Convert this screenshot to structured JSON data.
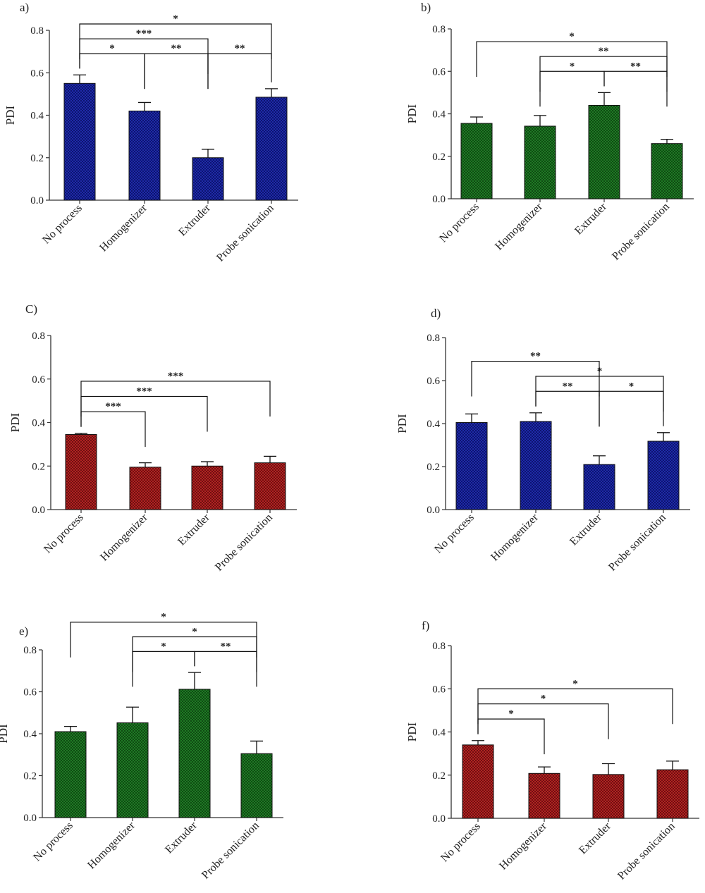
{
  "figure": {
    "colors": {
      "blue": "#1f2aa8",
      "green": "#1c6b22",
      "red": "#a01c1c",
      "axis": "#333333"
    },
    "chart_data": [
      {
        "panel": "a)",
        "type": "bar",
        "color": "blue",
        "ylabel": "PDI",
        "ylim": [
          0,
          0.8
        ],
        "yticks": [
          "0.0",
          "0.2",
          "0.4",
          "0.6",
          "0.8"
        ],
        "categories": [
          "No process",
          "Homogenizer",
          "Extruder",
          "Probe sonication"
        ],
        "values": [
          0.55,
          0.42,
          0.2,
          0.485
        ],
        "errors": [
          0.04,
          0.04,
          0.04,
          0.04
        ],
        "significance": [
          {
            "from": 0,
            "to": 1,
            "label": "*"
          },
          {
            "from": 0,
            "to": 2,
            "label": "***"
          },
          {
            "from": 1,
            "to": 2,
            "label": "**"
          },
          {
            "from": 2,
            "to": 3,
            "label": "**"
          },
          {
            "from": 0,
            "to": 3,
            "label": "*"
          }
        ]
      },
      {
        "panel": "b)",
        "type": "bar",
        "color": "green",
        "ylabel": "PDI",
        "ylim": [
          0,
          0.8
        ],
        "yticks": [
          "0.0",
          "0.2",
          "0.4",
          "0.6",
          "0.8"
        ],
        "categories": [
          "No process",
          "Homogenizer",
          "Extruder",
          "Probe sonication"
        ],
        "values": [
          0.355,
          0.342,
          0.44,
          0.26
        ],
        "errors": [
          0.03,
          0.05,
          0.06,
          0.02
        ],
        "significance": [
          {
            "from": 1,
            "to": 2,
            "label": "*"
          },
          {
            "from": 2,
            "to": 3,
            "label": "**"
          },
          {
            "from": 1,
            "to": 3,
            "label": "**"
          },
          {
            "from": 0,
            "to": 3,
            "label": "*"
          }
        ]
      },
      {
        "panel": "C)",
        "type": "bar",
        "color": "red",
        "ylabel": "PDI",
        "ylim": [
          0,
          0.8
        ],
        "yticks": [
          "0.0",
          "0.2",
          "0.4",
          "0.6",
          "0.8"
        ],
        "categories": [
          "No process",
          "Homogenizer",
          "Extruder",
          "Probe sonication"
        ],
        "values": [
          0.345,
          0.195,
          0.2,
          0.215
        ],
        "errors": [
          0.005,
          0.02,
          0.02,
          0.03
        ],
        "significance": [
          {
            "from": 0,
            "to": 1,
            "label": "***"
          },
          {
            "from": 0,
            "to": 2,
            "label": "***"
          },
          {
            "from": 0,
            "to": 3,
            "label": "***"
          }
        ]
      },
      {
        "panel": "d)",
        "type": "bar",
        "color": "blue",
        "ylabel": "PDI",
        "ylim": [
          0,
          0.8
        ],
        "yticks": [
          "0.0",
          "0.2",
          "0.4",
          "0.6",
          "0.8"
        ],
        "categories": [
          "No process",
          "Homogenizer",
          "Extruder",
          "Probe sonication"
        ],
        "values": [
          0.405,
          0.41,
          0.21,
          0.318
        ],
        "errors": [
          0.04,
          0.04,
          0.04,
          0.04
        ],
        "significance": [
          {
            "from": 1,
            "to": 2,
            "label": "**"
          },
          {
            "from": 2,
            "to": 3,
            "label": "*"
          },
          {
            "from": 1,
            "to": 3,
            "label": "*"
          },
          {
            "from": 0,
            "to": 2,
            "label": "**"
          }
        ]
      },
      {
        "panel": "e)",
        "type": "bar",
        "color": "green",
        "ylabel": "PDI",
        "ylim": [
          0,
          0.8
        ],
        "yticks": [
          "0.0",
          "0.2",
          "0.4",
          "0.6",
          "0.8"
        ],
        "categories": [
          "No process",
          "Homogenizer",
          "Extruder",
          "Probe sonication"
        ],
        "values": [
          0.41,
          0.452,
          0.612,
          0.305
        ],
        "errors": [
          0.025,
          0.075,
          0.08,
          0.06
        ],
        "significance": [
          {
            "from": 1,
            "to": 2,
            "label": "*"
          },
          {
            "from": 2,
            "to": 3,
            "label": "**"
          },
          {
            "from": 1,
            "to": 3,
            "label": "*"
          },
          {
            "from": 0,
            "to": 3,
            "label": "*"
          }
        ]
      },
      {
        "panel": "f)",
        "type": "bar",
        "color": "red",
        "ylabel": "PDI",
        "ylim": [
          0,
          0.8
        ],
        "yticks": [
          "0.0",
          "0.2",
          "0.4",
          "0.6",
          "0.8"
        ],
        "categories": [
          "No process",
          "Homogenizer",
          "Extruder",
          "Probe sonication"
        ],
        "values": [
          0.34,
          0.208,
          0.203,
          0.225
        ],
        "errors": [
          0.02,
          0.03,
          0.05,
          0.04
        ],
        "significance": [
          {
            "from": 0,
            "to": 1,
            "label": "*"
          },
          {
            "from": 0,
            "to": 2,
            "label": "*"
          },
          {
            "from": 0,
            "to": 3,
            "label": "*"
          }
        ]
      }
    ]
  }
}
